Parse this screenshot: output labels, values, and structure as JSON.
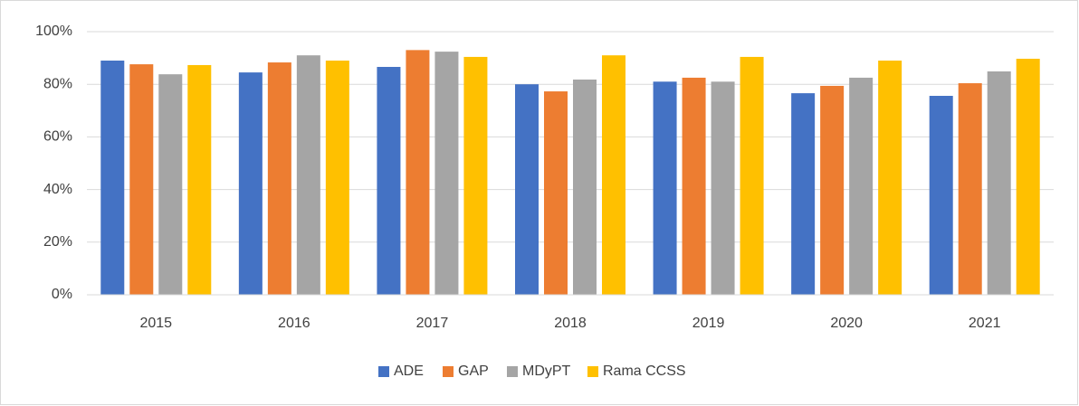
{
  "chart_data": {
    "type": "bar",
    "categories": [
      "2015",
      "2016",
      "2017",
      "2018",
      "2019",
      "2020",
      "2021"
    ],
    "series": [
      {
        "name": "ADE",
        "color": "#4472c4",
        "values": [
          89,
          84.5,
          86.6,
          80,
          81,
          76.6,
          75.6
        ]
      },
      {
        "name": "GAP",
        "color": "#ed7d31",
        "values": [
          87.6,
          88.3,
          93,
          77.3,
          82.5,
          79.4,
          80.4
        ]
      },
      {
        "name": "MDyPT",
        "color": "#a5a5a5",
        "values": [
          83.8,
          91,
          92.4,
          81.8,
          81,
          82.5,
          84.9
        ]
      },
      {
        "name": "Rama CCSS",
        "color": "#ffc000",
        "values": [
          87.3,
          89,
          90.4,
          91,
          90.4,
          89,
          89.7
        ]
      }
    ],
    "ylim": [
      0,
      100
    ],
    "yticks": [
      {
        "value": 0,
        "label": "0%"
      },
      {
        "value": 20,
        "label": "20%"
      },
      {
        "value": 40,
        "label": "40%"
      },
      {
        "value": 60,
        "label": "60%"
      },
      {
        "value": 80,
        "label": "80%"
      },
      {
        "value": 100,
        "label": "100%"
      }
    ],
    "grid": true,
    "legend": "bottom"
  }
}
